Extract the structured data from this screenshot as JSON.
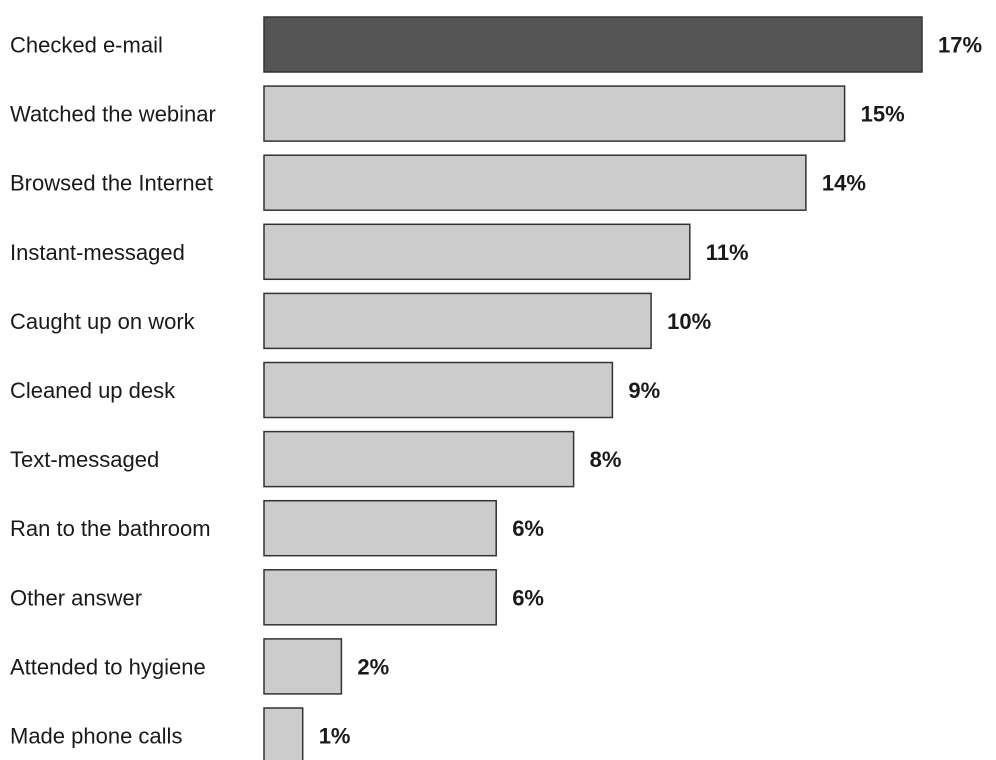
{
  "chart_data": {
    "type": "bar",
    "orientation": "horizontal",
    "categories": [
      "Checked e-mail",
      "Watched the webinar",
      "Browsed the Internet",
      "Instant-messaged",
      "Caught up on work",
      "Cleaned up desk",
      "Text-messaged",
      "Ran to the bathroom",
      "Other answer",
      "Attended to hygiene",
      "Made phone calls"
    ],
    "values": [
      17,
      15,
      14,
      11,
      10,
      9,
      8,
      6,
      6,
      2,
      1
    ],
    "value_labels": [
      "17%",
      "15%",
      "14%",
      "11%",
      "10%",
      "9%",
      "8%",
      "6%",
      "6%",
      "2%",
      "1%"
    ],
    "title": "",
    "xlabel": "",
    "ylabel": "",
    "xlim": [
      0,
      17
    ],
    "grid": false,
    "legend": false,
    "colors": {
      "highlight_fill": "#555555",
      "bar_fill": "#cccccc",
      "bar_stroke": "#333333",
      "text": "#1a1a1a"
    },
    "highlight_index": 0
  }
}
